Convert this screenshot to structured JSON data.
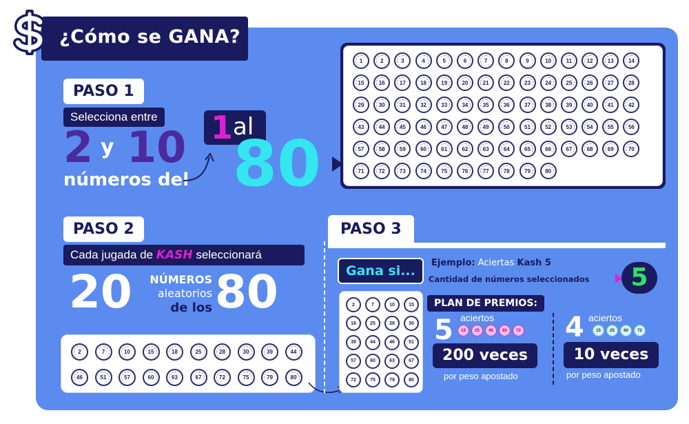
{
  "header": {
    "title": "¿Cómo se GANA?",
    "icon": "dollar-icon"
  },
  "paso1": {
    "label": "PASO 1",
    "select_text": "Selecciona entre",
    "num_low": "2",
    "conj": "y",
    "num_high": "10",
    "from_text": "números del",
    "one": "1",
    "al": "al",
    "eighty": "80"
  },
  "main_grid": {
    "numbers": [
      "1",
      "2",
      "3",
      "4",
      "5",
      "6",
      "7",
      "8",
      "9",
      "10",
      "11",
      "12",
      "13",
      "14",
      "15",
      "16",
      "17",
      "18",
      "19",
      "20",
      "21",
      "22",
      "23",
      "24",
      "25",
      "26",
      "27",
      "28",
      "29",
      "30",
      "31",
      "32",
      "33",
      "34",
      "35",
      "36",
      "37",
      "38",
      "39",
      "40",
      "41",
      "42",
      "43",
      "44",
      "45",
      "46",
      "47",
      "48",
      "49",
      "50",
      "51",
      "52",
      "53",
      "54",
      "55",
      "56",
      "57",
      "58",
      "59",
      "60",
      "61",
      "62",
      "63",
      "64",
      "65",
      "66",
      "67",
      "68",
      "69",
      "70",
      "71",
      "72",
      "73",
      "74",
      "75",
      "76",
      "77",
      "78",
      "79",
      "80"
    ]
  },
  "paso2": {
    "label": "PASO 2",
    "bar_prefix": "Cada jugada de",
    "bar_brand": "KASH",
    "bar_suffix": "seleccionará",
    "count": "20",
    "middle_line1": "NÚMEROS",
    "middle_line2": "aleatorios",
    "middle_line3": "de los",
    "total": "80",
    "random_numbers": [
      "2",
      "7",
      "10",
      "15",
      "18",
      "25",
      "28",
      "30",
      "39",
      "44",
      "46",
      "51",
      "57",
      "60",
      "63",
      "67",
      "72",
      "75",
      "79",
      "80"
    ]
  },
  "paso3": {
    "label": "PASO 3",
    "gana_si": "Gana si...",
    "ejemplo_label": "Ejemplo:",
    "ejemplo_text": "Aciertas",
    "ejemplo_brand": "Kash 5",
    "cantidad_text": "Cantidad de números seleccionados",
    "cantidad_value": "5",
    "selected_numbers": [
      "2",
      "7",
      "10",
      "15",
      "18",
      "25",
      "28",
      "30",
      "39",
      "44",
      "46",
      "51",
      "57",
      "60",
      "63",
      "67",
      "72",
      "75",
      "79",
      "80"
    ],
    "plan_title": "PLAN DE PREMIOS:",
    "prize1": {
      "hits": "5",
      "hits_label": "aciertos",
      "balls": [
        "15",
        "25",
        "46",
        "60",
        "72"
      ],
      "amount": "200 veces",
      "per_peso": "por peso apostado"
    },
    "prize2": {
      "hits": "4",
      "hits_label": "aciertos",
      "balls": [
        "15",
        "25",
        "60",
        "72"
      ],
      "amount": "10 veces",
      "per_peso": "por peso apostado"
    }
  },
  "colors": {
    "panel_blue": "#5b8bee",
    "navy": "#1a1a5e",
    "purple": "#4b2a9e",
    "cyan": "#34e6f0",
    "magenta": "#e020d0",
    "green": "#30e060"
  }
}
